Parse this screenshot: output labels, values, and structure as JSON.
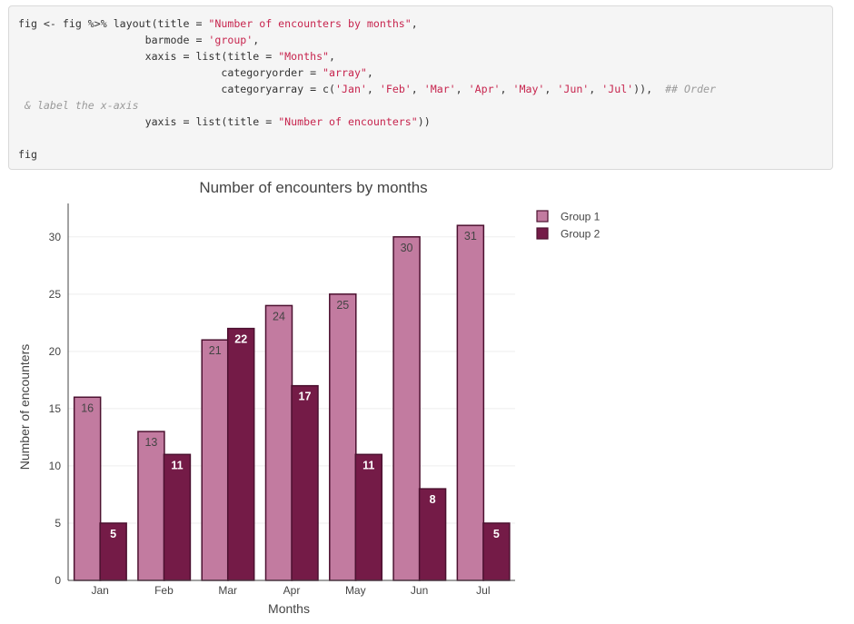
{
  "code": {
    "lines": [
      [
        {
          "t": "plain",
          "v": "fig <- fig %>% layout(title = "
        },
        {
          "t": "str",
          "v": "\"Number of encounters by months\""
        },
        {
          "t": "plain",
          "v": ","
        }
      ],
      [
        {
          "t": "plain",
          "v": "                    barmode = "
        },
        {
          "t": "str",
          "v": "'group'"
        },
        {
          "t": "plain",
          "v": ","
        }
      ],
      [
        {
          "t": "plain",
          "v": "                    xaxis = list(title = "
        },
        {
          "t": "str",
          "v": "\"Months\""
        },
        {
          "t": "plain",
          "v": ","
        }
      ],
      [
        {
          "t": "plain",
          "v": "                                categoryorder = "
        },
        {
          "t": "str",
          "v": "\"array\""
        },
        {
          "t": "plain",
          "v": ","
        }
      ],
      [
        {
          "t": "plain",
          "v": "                                categoryarray = c("
        },
        {
          "t": "str",
          "v": "'Jan'"
        },
        {
          "t": "plain",
          "v": ", "
        },
        {
          "t": "str",
          "v": "'Feb'"
        },
        {
          "t": "plain",
          "v": ", "
        },
        {
          "t": "str",
          "v": "'Mar'"
        },
        {
          "t": "plain",
          "v": ", "
        },
        {
          "t": "str",
          "v": "'Apr'"
        },
        {
          "t": "plain",
          "v": ", "
        },
        {
          "t": "str",
          "v": "'May'"
        },
        {
          "t": "plain",
          "v": ", "
        },
        {
          "t": "str",
          "v": "'Jun'"
        },
        {
          "t": "plain",
          "v": ", "
        },
        {
          "t": "str",
          "v": "'Jul'"
        },
        {
          "t": "plain",
          "v": ")),  "
        },
        {
          "t": "cmt",
          "v": "## Order"
        }
      ],
      [
        {
          "t": "cmt",
          "v": " & label the x-axis"
        }
      ],
      [
        {
          "t": "plain",
          "v": "                    yaxis = list(title = "
        },
        {
          "t": "str",
          "v": "\"Number of encounters\""
        },
        {
          "t": "plain",
          "v": "))"
        }
      ],
      [],
      [
        {
          "t": "plain",
          "v": "fig"
        }
      ]
    ]
  },
  "chart_data": {
    "type": "bar",
    "title": "Number of encounters by months",
    "xlabel": "Months",
    "ylabel": "Number of encounters",
    "categories": [
      "Jan",
      "Feb",
      "Mar",
      "Apr",
      "May",
      "Jun",
      "Jul"
    ],
    "series": [
      {
        "name": "Group 1",
        "values": [
          16,
          13,
          21,
          24,
          25,
          30,
          31
        ],
        "color": "#c27ba0",
        "label_color": "#444444"
      },
      {
        "name": "Group 2",
        "values": [
          5,
          11,
          22,
          17,
          11,
          8,
          5
        ],
        "color": "#741b47",
        "label_color": "#ffffff"
      }
    ],
    "yticks": [
      0,
      5,
      10,
      15,
      20,
      25,
      30
    ],
    "ylim": [
      0,
      32.6
    ],
    "barmode": "group",
    "bar_outline_color": "#4c1130",
    "grid": true,
    "legend_position": "top-right"
  }
}
